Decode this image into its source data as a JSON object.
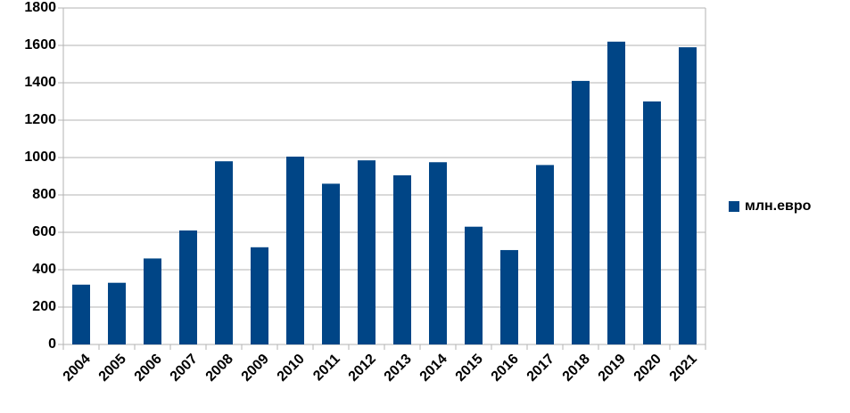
{
  "chart_data": {
    "type": "bar",
    "categories": [
      "2004",
      "2005",
      "2006",
      "2007",
      "2008",
      "2009",
      "2010",
      "2011",
      "2012",
      "2013",
      "2014",
      "2015",
      "2016",
      "2017",
      "2018",
      "2019",
      "2020",
      "2021"
    ],
    "series": [
      {
        "name": "млн.евро",
        "color": "#004586",
        "values": [
          320,
          330,
          460,
          610,
          980,
          520,
          1005,
          860,
          985,
          905,
          975,
          630,
          505,
          960,
          1410,
          1620,
          1300,
          1590
        ]
      }
    ],
    "ylim": [
      0,
      1800
    ],
    "yticks": [
      0,
      200,
      400,
      600,
      800,
      1000,
      1200,
      1400,
      1600,
      1800
    ],
    "grid": true,
    "legend": "right"
  }
}
